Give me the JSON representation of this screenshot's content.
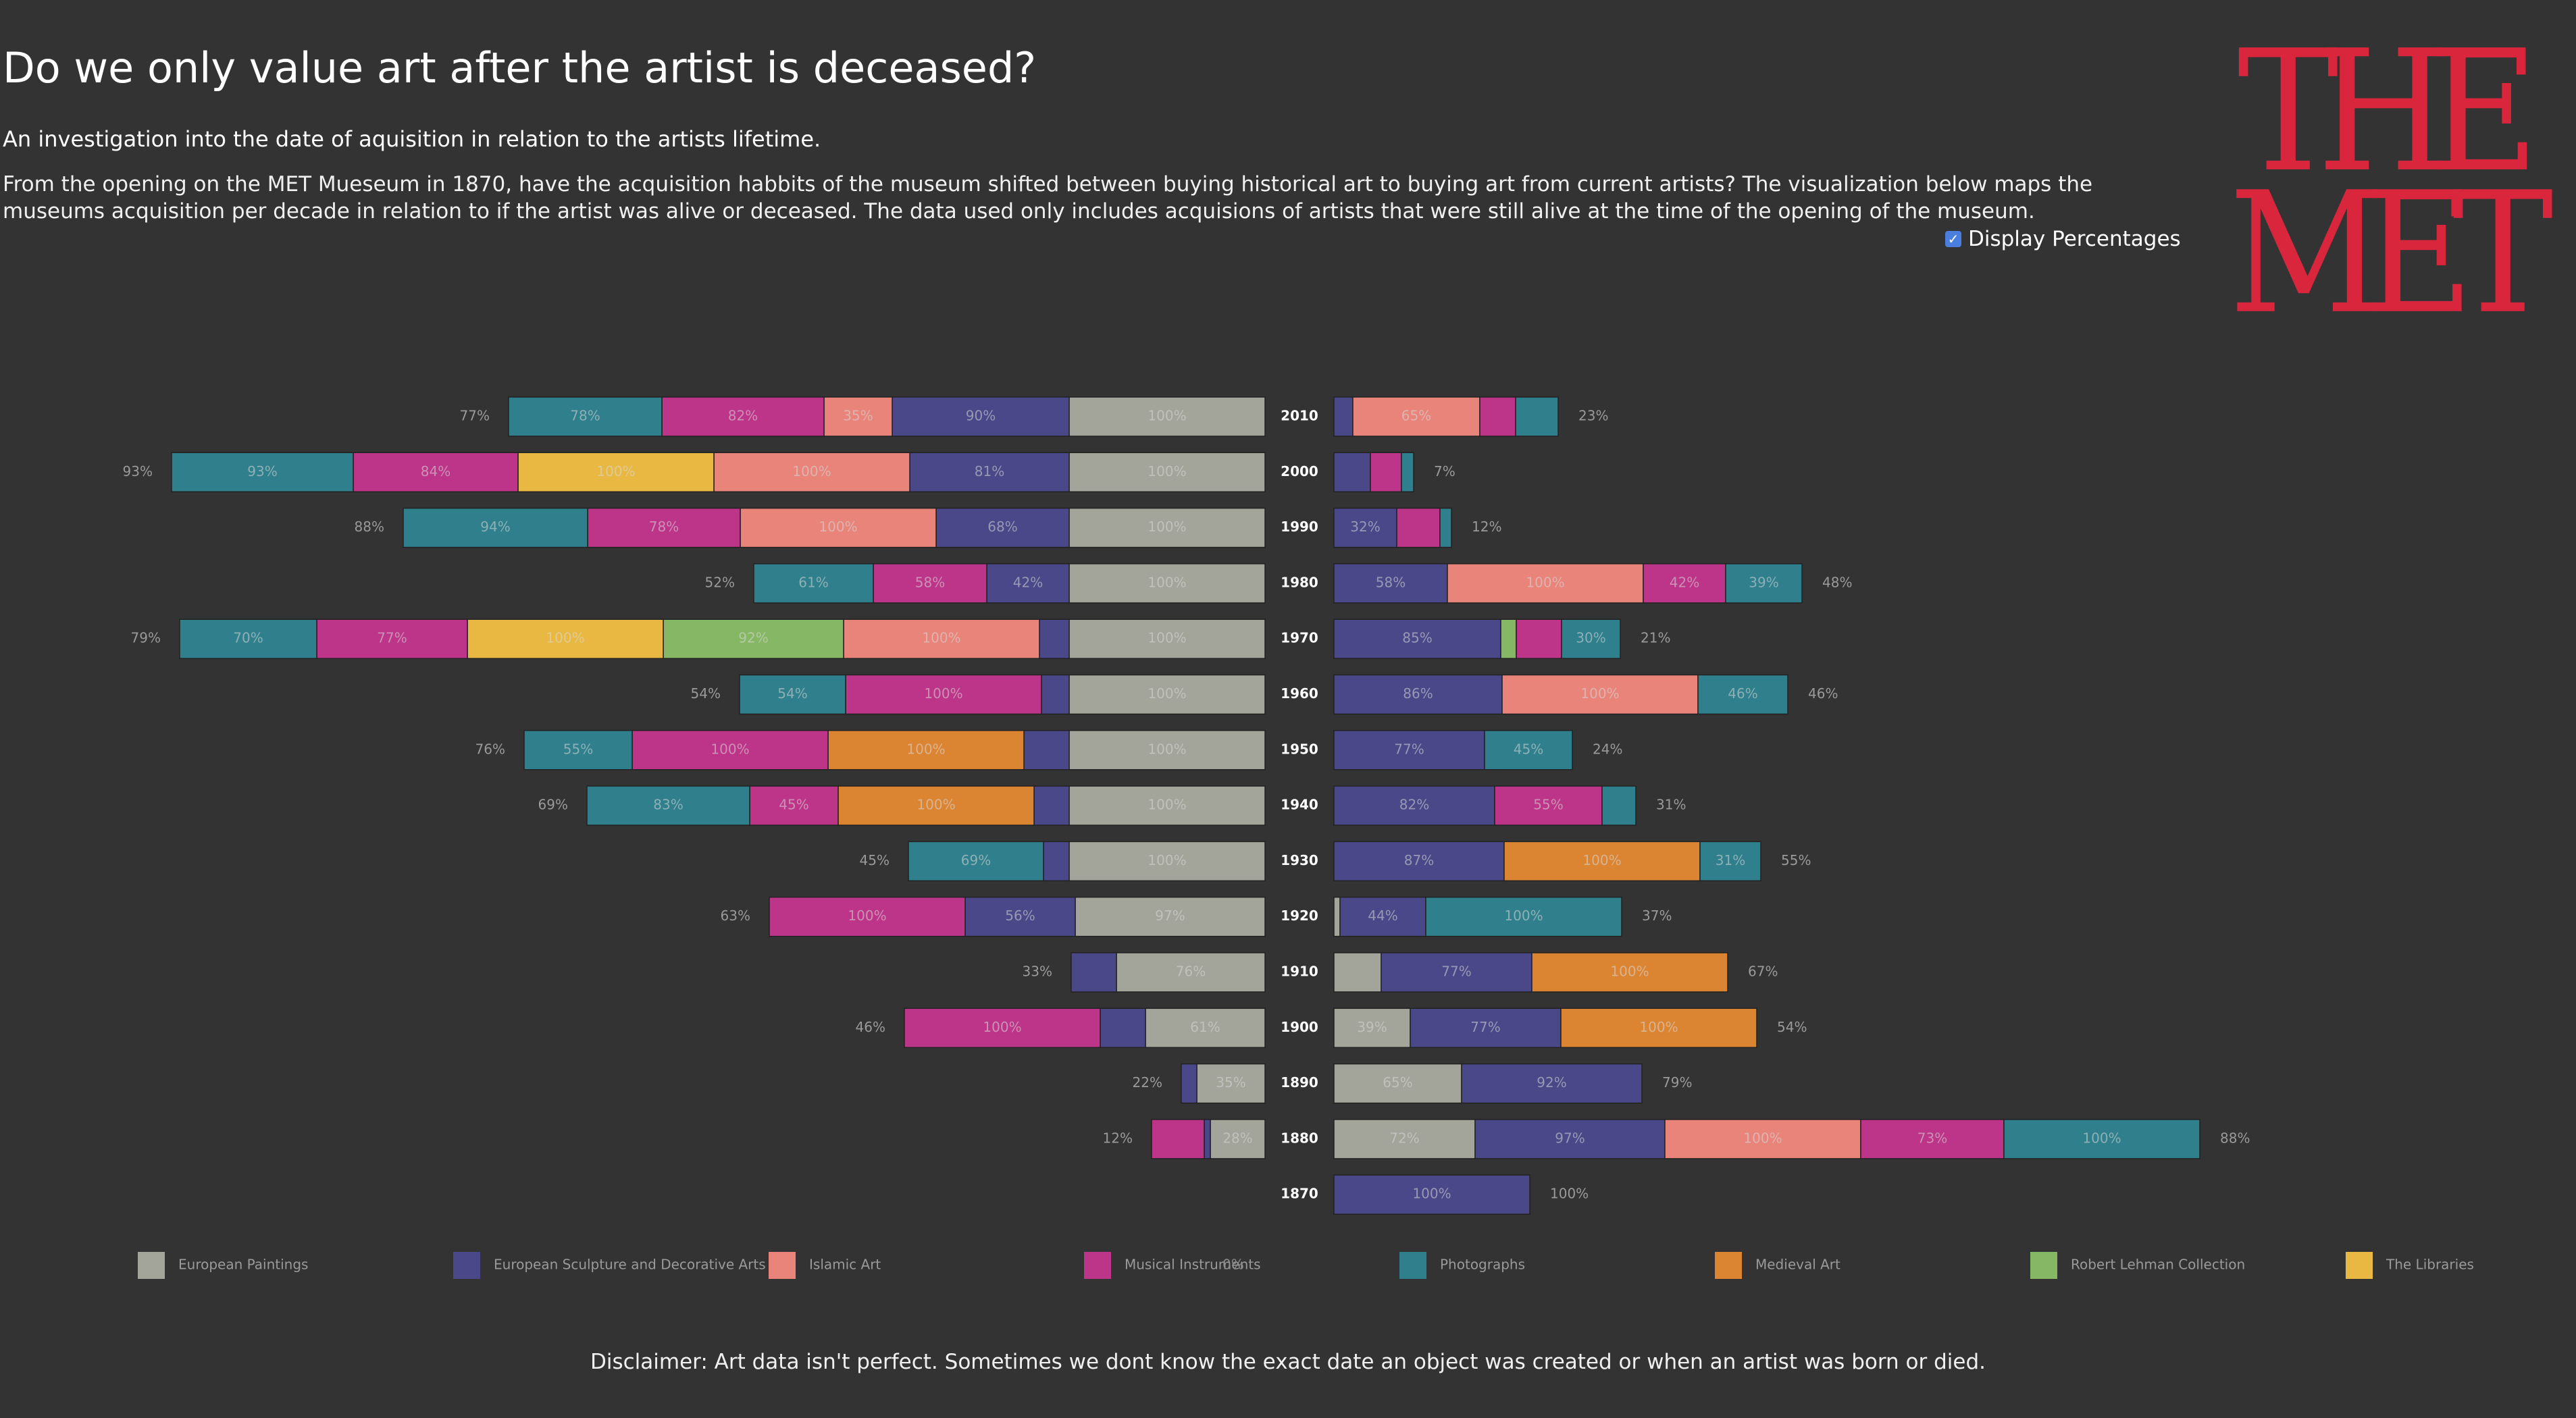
{
  "title": "Do we only value art after the artist is deceased?",
  "subtitle": "An investigation into the date of aquisition in relation to the artists lifetime.",
  "description": "From the opening on the MET Mueseum in 1870, have the acquisition habbits of the museum shifted between buying historical art to buying art from current artists? The visualization below maps the museums acquisition per decade in relation to if the artist was alive or deceased. The data used only includes acquisions of artists that were still alive at the time of the opening of the museum.",
  "toggle": {
    "label": "Display Percentages",
    "checked": true
  },
  "logo": {
    "line1": "THE",
    "line2": "MET",
    "color": "#d9263c"
  },
  "disclaimer": "Disclaimer: Art data isn't perfect. Sometimes we dont know the exact date an object was created or when an artist was born or died.",
  "chart_data": {
    "type": "bar",
    "layout": "diverging stacked horizontal bars, decades in the center",
    "categories": [
      "European Paintings",
      "European Sculpture and Decorative Arts",
      "Islamic Art",
      "Musical Instruments",
      "Photographs",
      "Medieval Art",
      "Robert Lehman Collection",
      "The Libraries"
    ],
    "colors": [
      "#a3a59a",
      "#4a4888",
      "#e9847a",
      "#bd3589",
      "#2f7f8c",
      "#db8533",
      "#86b764",
      "#e8b842"
    ],
    "legend_position": "bottom",
    "stray_legend_text": "0%",
    "rows": [
      {
        "decade": "2010",
        "left_total": "77%",
        "right_total": "23%",
        "left": [
          [
            "European Paintings",
            290,
            "100%"
          ],
          [
            "European Sculpture and Decorative Arts",
            262,
            "90%"
          ],
          [
            "Islamic Art",
            101,
            "35%"
          ],
          [
            "Musical Instruments",
            240,
            "82%"
          ],
          [
            "Photographs",
            227,
            "78%"
          ]
        ],
        "right": [
          [
            "European Sculpture and Decorative Arts",
            28,
            ""
          ],
          [
            "Islamic Art",
            188,
            "65%"
          ],
          [
            "Musical Instruments",
            53,
            ""
          ],
          [
            "Photographs",
            63,
            ""
          ]
        ]
      },
      {
        "decade": "2000",
        "left_total": "93%",
        "right_total": "7%",
        "left": [
          [
            "European Paintings",
            290,
            "100%"
          ],
          [
            "European Sculpture and Decorative Arts",
            236,
            "81%"
          ],
          [
            "Islamic Art",
            290,
            "100%"
          ],
          [
            "The Libraries",
            290,
            "100%"
          ],
          [
            "Musical Instruments",
            244,
            "84%"
          ],
          [
            "Photographs",
            269,
            "93%"
          ]
        ],
        "right": [
          [
            "European Sculpture and Decorative Arts",
            54,
            ""
          ],
          [
            "Musical Instruments",
            46,
            ""
          ],
          [
            "Photographs",
            18,
            ""
          ]
        ]
      },
      {
        "decade": "1990",
        "left_total": "88%",
        "right_total": "12%",
        "left": [
          [
            "European Paintings",
            290,
            "100%"
          ],
          [
            "European Sculpture and Decorative Arts",
            197,
            "68%"
          ],
          [
            "Islamic Art",
            290,
            "100%"
          ],
          [
            "Musical Instruments",
            226,
            "78%"
          ],
          [
            "Photographs",
            273,
            "94%"
          ]
        ],
        "right": [
          [
            "European Sculpture and Decorative Arts",
            93,
            "32%"
          ],
          [
            "Musical Instruments",
            64,
            ""
          ],
          [
            "Photographs",
            17,
            ""
          ]
        ]
      },
      {
        "decade": "1980",
        "left_total": "52%",
        "right_total": "48%",
        "left": [
          [
            "European Paintings",
            290,
            "100%"
          ],
          [
            "European Sculpture and Decorative Arts",
            122,
            "42%"
          ],
          [
            "Musical Instruments",
            168,
            "58%"
          ],
          [
            "Photographs",
            177,
            "61%"
          ]
        ],
        "right": [
          [
            "European Sculpture and Decorative Arts",
            168,
            "58%"
          ],
          [
            "Islamic Art",
            290,
            "100%"
          ],
          [
            "Musical Instruments",
            122,
            "42%"
          ],
          [
            "Photographs",
            113,
            "39%"
          ]
        ]
      },
      {
        "decade": "1970",
        "left_total": "79%",
        "right_total": "21%",
        "left": [
          [
            "European Paintings",
            290,
            "100%"
          ],
          [
            "European Sculpture and Decorative Arts",
            44,
            ""
          ],
          [
            "Islamic Art",
            290,
            "100%"
          ],
          [
            "Robert Lehman Collection",
            267,
            "92%"
          ],
          [
            "The Libraries",
            290,
            "100%"
          ],
          [
            "Musical Instruments",
            223,
            "77%"
          ],
          [
            "Photographs",
            203,
            "70%"
          ]
        ],
        "right": [
          [
            "European Sculpture and Decorative Arts",
            247,
            "85%"
          ],
          [
            "Robert Lehman Collection",
            23,
            ""
          ],
          [
            "Musical Instruments",
            67,
            ""
          ],
          [
            "Photographs",
            87,
            "30%"
          ]
        ]
      },
      {
        "decade": "1960",
        "left_total": "54%",
        "right_total": "46%",
        "left": [
          [
            "European Paintings",
            290,
            "100%"
          ],
          [
            "European Sculpture and Decorative Arts",
            41,
            ""
          ],
          [
            "Musical Instruments",
            290,
            "100%"
          ],
          [
            "Photographs",
            157,
            "54%"
          ]
        ],
        "right": [
          [
            "European Sculpture and Decorative Arts",
            249,
            "86%"
          ],
          [
            "Islamic Art",
            290,
            "100%"
          ],
          [
            "Photographs",
            133,
            "46%"
          ]
        ]
      },
      {
        "decade": "1950",
        "left_total": "76%",
        "right_total": "24%",
        "left": [
          [
            "European Paintings",
            290,
            "100%"
          ],
          [
            "European Sculpture and Decorative Arts",
            67,
            ""
          ],
          [
            "Medieval Art",
            290,
            "100%"
          ],
          [
            "Musical Instruments",
            290,
            "100%"
          ],
          [
            "Photographs",
            160,
            "55%"
          ]
        ],
        "right": [
          [
            "European Sculpture and Decorative Arts",
            223,
            "77%"
          ],
          [
            "Photographs",
            130,
            "45%"
          ]
        ]
      },
      {
        "decade": "1940",
        "left_total": "69%",
        "right_total": "31%",
        "left": [
          [
            "European Paintings",
            290,
            "100%"
          ],
          [
            "European Sculpture and Decorative Arts",
            52,
            ""
          ],
          [
            "Medieval Art",
            290,
            "100%"
          ],
          [
            "Musical Instruments",
            131,
            "45%"
          ],
          [
            "Photographs",
            241,
            "83%"
          ]
        ],
        "right": [
          [
            "European Sculpture and Decorative Arts",
            238,
            "82%"
          ],
          [
            "Musical Instruments",
            159,
            "55%"
          ],
          [
            "Photographs",
            50,
            ""
          ]
        ]
      },
      {
        "decade": "1930",
        "left_total": "45%",
        "right_total": "55%",
        "left": [
          [
            "European Paintings",
            290,
            "100%"
          ],
          [
            "European Sculpture and Decorative Arts",
            38,
            ""
          ],
          [
            "Photographs",
            200,
            "69%"
          ]
        ],
        "right": [
          [
            "European Sculpture and Decorative Arts",
            252,
            "87%"
          ],
          [
            "Medieval Art",
            290,
            "100%"
          ],
          [
            "Photographs",
            90,
            "31%"
          ]
        ]
      },
      {
        "decade": "1920",
        "left_total": "63%",
        "right_total": "37%",
        "left": [
          [
            "European Paintings",
            281,
            "97%"
          ],
          [
            "European Sculpture and Decorative Arts",
            163,
            "56%"
          ],
          [
            "Musical Instruments",
            290,
            "100%"
          ]
        ],
        "right": [
          [
            "European Paintings",
            9,
            ""
          ],
          [
            "European Sculpture and Decorative Arts",
            127,
            "44%"
          ],
          [
            "Photographs",
            290,
            "100%"
          ]
        ]
      },
      {
        "decade": "1910",
        "left_total": "33%",
        "right_total": "67%",
        "left": [
          [
            "European Paintings",
            220,
            "76%"
          ],
          [
            "European Sculpture and Decorative Arts",
            67,
            ""
          ]
        ],
        "right": [
          [
            "European Paintings",
            70,
            ""
          ],
          [
            "European Sculpture and Decorative Arts",
            223,
            "77%"
          ],
          [
            "Medieval Art",
            290,
            "100%"
          ]
        ]
      },
      {
        "decade": "1900",
        "left_total": "46%",
        "right_total": "54%",
        "left": [
          [
            "European Paintings",
            177,
            "61%"
          ],
          [
            "European Sculpture and Decorative Arts",
            67,
            ""
          ],
          [
            "Musical Instruments",
            290,
            "100%"
          ]
        ],
        "right": [
          [
            "European Paintings",
            113,
            "39%"
          ],
          [
            "European Sculpture and Decorative Arts",
            223,
            "77%"
          ],
          [
            "Medieval Art",
            290,
            "100%"
          ]
        ]
      },
      {
        "decade": "1890",
        "left_total": "22%",
        "right_total": "79%",
        "left": [
          [
            "European Paintings",
            101,
            "35%"
          ],
          [
            "European Sculpture and Decorative Arts",
            23,
            ""
          ]
        ],
        "right": [
          [
            "European Paintings",
            189,
            "65%"
          ],
          [
            "European Sculpture and Decorative Arts",
            267,
            "92%"
          ]
        ]
      },
      {
        "decade": "1880",
        "left_total": "12%",
        "right_total": "88%",
        "left": [
          [
            "European Paintings",
            81,
            "28%"
          ],
          [
            "European Sculpture and Decorative Arts",
            9,
            ""
          ],
          [
            "Musical Instruments",
            78,
            ""
          ]
        ],
        "right": [
          [
            "European Paintings",
            209,
            "72%"
          ],
          [
            "European Sculpture and Decorative Arts",
            281,
            "97%"
          ],
          [
            "Islamic Art",
            290,
            "100%"
          ],
          [
            "Musical Instruments",
            212,
            "73%"
          ],
          [
            "Photographs",
            290,
            "100%"
          ]
        ]
      },
      {
        "decade": "1870",
        "left_total": "",
        "right_total": "100%",
        "left": [],
        "right": [
          [
            "European Sculpture and Decorative Arts",
            290,
            "100%"
          ]
        ]
      }
    ]
  }
}
